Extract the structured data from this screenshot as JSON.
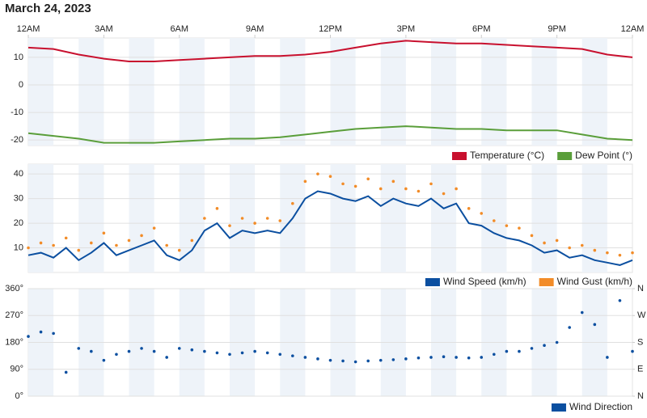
{
  "title": "March 24, 2023",
  "chart_data": [
    {
      "type": "line",
      "x": [
        0,
        1,
        2,
        3,
        4,
        5,
        6,
        7,
        8,
        9,
        10,
        11,
        12,
        13,
        14,
        15,
        16,
        17,
        18,
        19,
        20,
        21,
        22,
        23,
        24
      ],
      "xlim": [
        0,
        24
      ],
      "xticks": [
        {
          "value": 0,
          "label": "12AM"
        },
        {
          "value": 3,
          "label": "3AM"
        },
        {
          "value": 6,
          "label": "6AM"
        },
        {
          "value": 9,
          "label": "9AM"
        },
        {
          "value": 12,
          "label": "12PM"
        },
        {
          "value": 15,
          "label": "3PM"
        },
        {
          "value": 18,
          "label": "6PM"
        },
        {
          "value": 21,
          "label": "9PM"
        },
        {
          "value": 24,
          "label": "12AM"
        }
      ],
      "ylim": [
        -22,
        17
      ],
      "yticks": [
        -20,
        -10,
        0,
        10
      ],
      "grid": true,
      "series": [
        {
          "name": "Temperature (°C)",
          "color": "#c8102e",
          "values": [
            13.5,
            13,
            11,
            9.5,
            8.5,
            8.5,
            9,
            9.5,
            10,
            10.5,
            10.5,
            11,
            12,
            13.5,
            15,
            16,
            15.5,
            15,
            15,
            14.5,
            14,
            13.5,
            13,
            11,
            10
          ]
        },
        {
          "name": "Dew Point (°)",
          "color": "#5a9e3a",
          "values": [
            -17.5,
            -18.5,
            -19.5,
            -21,
            -21,
            -21,
            -20.5,
            -20,
            -19.5,
            -19.5,
            -19,
            -18,
            -17,
            -16,
            -15.5,
            -15,
            -15.5,
            -16,
            -16,
            -16.5,
            -16.5,
            -16.5,
            -18,
            -19.5,
            -20
          ]
        }
      ]
    },
    {
      "type": "line",
      "x": [
        0,
        0.5,
        1,
        1.5,
        2,
        2.5,
        3,
        3.5,
        4,
        4.5,
        5,
        5.5,
        6,
        6.5,
        7,
        7.5,
        8,
        8.5,
        9,
        9.5,
        10,
        10.5,
        11,
        11.5,
        12,
        12.5,
        13,
        13.5,
        14,
        14.5,
        15,
        15.5,
        16,
        16.5,
        17,
        17.5,
        18,
        18.5,
        19,
        19.5,
        20,
        20.5,
        21,
        21.5,
        22,
        22.5,
        23,
        23.5,
        24
      ],
      "xlim": [
        0,
        24
      ],
      "ylim": [
        0,
        44
      ],
      "yticks": [
        10,
        20,
        30,
        40
      ],
      "grid": true,
      "series": [
        {
          "name": "Wind Speed (km/h)",
          "color": "#0b4fa0",
          "values": [
            7,
            8,
            6,
            10,
            5,
            8,
            12,
            7,
            9,
            11,
            13,
            7,
            5,
            9,
            17,
            20,
            14,
            17,
            16,
            17,
            16,
            22,
            30,
            33,
            32,
            30,
            29,
            31,
            27,
            30,
            28,
            27,
            30,
            26,
            28,
            20,
            19,
            16,
            14,
            13,
            11,
            8,
            9,
            6,
            7,
            5,
            4,
            3,
            5
          ]
        },
        {
          "name": "Wind Gust (km/h)",
          "color": "#f28c28",
          "style": "dots",
          "values": [
            10,
            12,
            11,
            14,
            9,
            12,
            16,
            11,
            13,
            15,
            18,
            11,
            9,
            13,
            22,
            26,
            19,
            22,
            20,
            22,
            21,
            28,
            37,
            40,
            39,
            36,
            35,
            38,
            34,
            37,
            34,
            33,
            36,
            32,
            34,
            26,
            24,
            21,
            19,
            18,
            15,
            12,
            13,
            10,
            11,
            9,
            8,
            7,
            8
          ]
        }
      ]
    },
    {
      "type": "scatter",
      "x": [
        0,
        0.5,
        1,
        1.5,
        2,
        2.5,
        3,
        3.5,
        4,
        4.5,
        5,
        5.5,
        6,
        6.5,
        7,
        7.5,
        8,
        8.5,
        9,
        9.5,
        10,
        10.5,
        11,
        11.5,
        12,
        12.5,
        13,
        13.5,
        14,
        14.5,
        15,
        15.5,
        16,
        16.5,
        17,
        17.5,
        18,
        18.5,
        19,
        19.5,
        20,
        20.5,
        21,
        21.5,
        22,
        22.5,
        23,
        23.5,
        24
      ],
      "xlim": [
        0,
        24
      ],
      "ylim": [
        0,
        360
      ],
      "yticks": [
        {
          "value": 0,
          "label": "0°"
        },
        {
          "value": 90,
          "label": "90°"
        },
        {
          "value": 180,
          "label": "180°"
        },
        {
          "value": 270,
          "label": "270°"
        },
        {
          "value": 360,
          "label": "360°"
        }
      ],
      "y2lim": [
        0,
        360
      ],
      "y2ticks": [
        {
          "value": 0,
          "label": "N"
        },
        {
          "value": 90,
          "label": "E"
        },
        {
          "value": 180,
          "label": "S"
        },
        {
          "value": 270,
          "label": "W"
        },
        {
          "value": 360,
          "label": "N"
        }
      ],
      "grid": true,
      "series": [
        {
          "name": "Wind Direction",
          "color": "#0b4fa0",
          "values": [
            200,
            215,
            210,
            80,
            160,
            150,
            120,
            140,
            150,
            160,
            150,
            130,
            160,
            155,
            150,
            145,
            140,
            145,
            150,
            145,
            140,
            135,
            130,
            125,
            120,
            118,
            115,
            118,
            120,
            122,
            125,
            128,
            130,
            132,
            130,
            128,
            130,
            140,
            150,
            150,
            160,
            170,
            180,
            230,
            280,
            240,
            130,
            320,
            150
          ]
        }
      ]
    }
  ]
}
